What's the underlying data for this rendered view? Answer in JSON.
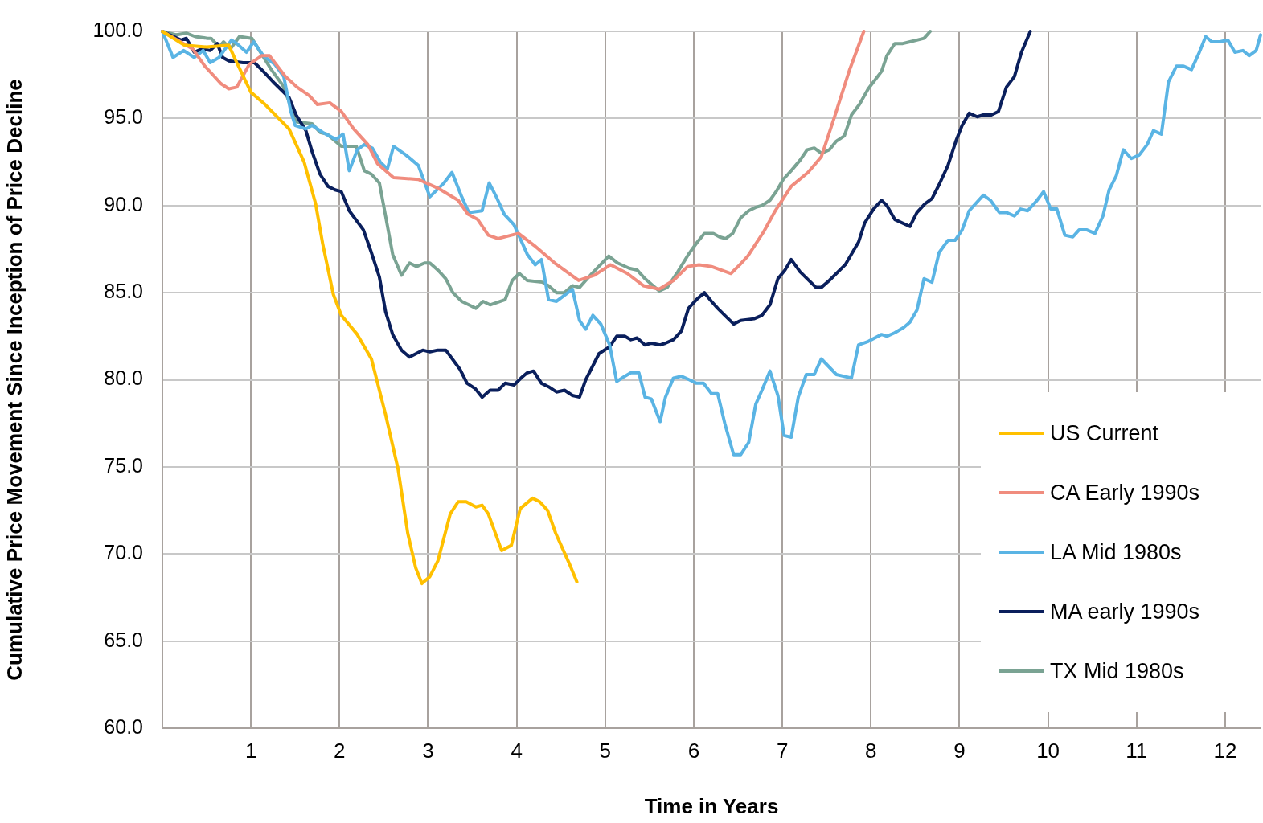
{
  "chart_data": {
    "type": "line",
    "xlabel": "Time in Years",
    "ylabel": "Cumulative Price Movement Since Inception of Price Decline",
    "xlim": [
      0,
      12.4
    ],
    "xticks": [
      1,
      2,
      3,
      4,
      5,
      6,
      7,
      8,
      9,
      10,
      11,
      12
    ],
    "ylim": [
      60,
      100
    ],
    "yticks": [
      {
        "value": 60,
        "label": "60.0"
      },
      {
        "value": 65,
        "label": "65.0"
      },
      {
        "value": 70,
        "label": "70.0"
      },
      {
        "value": 75,
        "label": "75.0"
      },
      {
        "value": 80,
        "label": "80.0"
      },
      {
        "value": 85,
        "label": "85.0"
      },
      {
        "value": 90,
        "label": "90.0"
      },
      {
        "value": 95,
        "label": "95.0"
      },
      {
        "value": 100,
        "label": "100.0"
      }
    ],
    "grid": true,
    "legend": "bottom right",
    "marker": "none",
    "line_style": "solid",
    "series": [
      {
        "name": "US Current",
        "color": "#ffc000",
        "x": [
          0,
          0.25,
          0.5,
          0.75,
          0.84,
          1.0,
          1.16,
          1.43,
          1.6,
          1.73,
          1.81,
          1.93,
          2.02,
          2.2,
          2.36,
          2.52,
          2.66,
          2.77,
          2.86,
          2.93,
          3.02,
          3.11,
          3.25,
          3.34,
          3.43,
          3.54,
          3.61,
          3.68,
          3.83,
          3.94,
          4.04,
          4.18,
          4.26,
          4.35,
          4.44,
          4.59,
          4.68
        ],
        "values": [
          100,
          99.2,
          99.1,
          99.2,
          98.2,
          96.5,
          95.8,
          94.4,
          92.5,
          90.1,
          87.8,
          84.9,
          83.7,
          82.6,
          81.2,
          78.0,
          74.9,
          71.2,
          69.2,
          68.3,
          68.7,
          69.6,
          72.3,
          73.0,
          73.0,
          72.7,
          72.8,
          72.3,
          70.2,
          70.5,
          72.6,
          73.2,
          73.0,
          72.5,
          71.2,
          69.5,
          68.4
        ]
      },
      {
        "name": "CA Early 1990s",
        "color": "#f08c7e",
        "x": [
          0,
          0.34,
          0.48,
          0.66,
          0.75,
          0.84,
          0.98,
          1.12,
          1.21,
          1.39,
          1.52,
          1.66,
          1.75,
          1.89,
          2.02,
          2.16,
          2.32,
          2.43,
          2.61,
          2.89,
          3.11,
          3.34,
          3.45,
          3.56,
          3.68,
          3.79,
          4.02,
          4.2,
          4.43,
          4.7,
          4.88,
          5.06,
          5.25,
          5.43,
          5.61,
          5.77,
          5.93,
          6.06,
          6.2,
          6.42,
          6.52,
          6.61,
          6.79,
          6.92,
          7.1,
          7.29,
          7.44,
          7.59,
          7.76,
          7.92
        ],
        "values": [
          100,
          99.0,
          98.0,
          97.0,
          96.7,
          96.8,
          98.1,
          98.6,
          98.6,
          97.4,
          96.8,
          96.3,
          95.8,
          95.9,
          95.4,
          94.4,
          93.5,
          92.4,
          91.6,
          91.5,
          91.0,
          90.3,
          89.5,
          89.2,
          88.3,
          88.1,
          88.4,
          87.7,
          86.7,
          85.7,
          86.0,
          86.6,
          86.1,
          85.4,
          85.2,
          85.7,
          86.5,
          86.6,
          86.5,
          86.1,
          86.6,
          87.1,
          88.5,
          89.7,
          91.1,
          91.9,
          92.8,
          95.1,
          97.8,
          100
        ]
      },
      {
        "name": "LA Mid 1980s",
        "color": "#5ab4e4",
        "x": [
          0,
          0.12,
          0.24,
          0.36,
          0.46,
          0.54,
          0.64,
          0.78,
          0.84,
          0.95,
          1.03,
          1.14,
          1.27,
          1.37,
          1.45,
          1.5,
          1.62,
          1.69,
          1.81,
          1.96,
          2.04,
          2.11,
          2.2,
          2.28,
          2.37,
          2.46,
          2.54,
          2.61,
          2.75,
          2.89,
          3.02,
          3.18,
          3.27,
          3.38,
          3.46,
          3.61,
          3.69,
          3.77,
          3.86,
          3.97,
          4.12,
          4.21,
          4.28,
          4.36,
          4.45,
          4.63,
          4.71,
          4.78,
          4.86,
          4.95,
          5.05,
          5.13,
          5.22,
          5.29,
          5.38,
          5.45,
          5.52,
          5.62,
          5.68,
          5.77,
          5.86,
          5.95,
          6.03,
          6.11,
          6.2,
          6.27,
          6.35,
          6.45,
          6.53,
          6.62,
          6.7,
          6.77,
          6.86,
          6.95,
          7.02,
          7.1,
          7.18,
          7.27,
          7.36,
          7.44,
          7.61,
          7.78,
          7.86,
          7.97,
          8.12,
          8.18,
          8.27,
          8.37,
          8.44,
          8.52,
          8.6,
          8.69,
          8.77,
          8.87,
          8.95,
          9.03,
          9.11,
          9.27,
          9.35,
          9.45,
          9.53,
          9.62,
          9.69,
          9.77,
          9.86,
          9.95,
          10.03,
          10.1,
          10.19,
          10.28,
          10.35,
          10.44,
          10.53,
          10.62,
          10.69,
          10.77,
          10.85,
          10.94,
          11.03,
          11.12,
          11.19,
          11.28,
          11.36,
          11.45,
          11.53,
          11.62,
          11.7,
          11.78,
          11.85,
          11.94,
          12.03,
          12.11,
          12.2,
          12.27,
          12.35,
          12.4
        ],
        "values": [
          100,
          98.5,
          98.9,
          98.5,
          98.9,
          98.2,
          98.5,
          99.5,
          99.3,
          98.8,
          99.4,
          98.6,
          98.1,
          97.4,
          95.4,
          94.6,
          94.4,
          94.6,
          94.2,
          93.8,
          94.1,
          92.0,
          93.2,
          93.5,
          93.3,
          92.5,
          92.1,
          93.4,
          92.9,
          92.3,
          90.5,
          91.3,
          91.9,
          90.5,
          89.6,
          89.7,
          91.3,
          90.5,
          89.5,
          88.9,
          87.2,
          86.6,
          86.9,
          84.6,
          84.5,
          85.2,
          83.4,
          82.9,
          83.7,
          83.2,
          82.0,
          79.9,
          80.2,
          80.4,
          80.4,
          79.0,
          78.9,
          77.6,
          79.0,
          80.1,
          80.2,
          80.0,
          79.8,
          79.8,
          79.2,
          79.2,
          77.5,
          75.7,
          75.7,
          76.4,
          78.6,
          79.4,
          80.5,
          79.1,
          76.8,
          76.7,
          79.0,
          80.3,
          80.3,
          81.2,
          80.3,
          80.1,
          82.0,
          82.2,
          82.6,
          82.5,
          82.7,
          83.0,
          83.3,
          84.0,
          85.8,
          85.6,
          87.3,
          88.0,
          88.0,
          88.6,
          89.7,
          90.6,
          90.3,
          89.6,
          89.6,
          89.4,
          89.8,
          89.7,
          90.2,
          90.8,
          89.8,
          89.8,
          88.3,
          88.2,
          88.6,
          88.6,
          88.4,
          89.4,
          90.9,
          91.7,
          93.2,
          92.7,
          92.9,
          93.5,
          94.3,
          94.1,
          97.1,
          98.0,
          98.0,
          97.8,
          98.7,
          99.7,
          99.4,
          99.4,
          99.5,
          98.8,
          98.9,
          98.6,
          98.9,
          99.8
        ]
      },
      {
        "name": "MA early 1990s",
        "color": "#0a1f5c",
        "x": [
          0,
          0.21,
          0.27,
          0.36,
          0.45,
          0.54,
          0.62,
          0.68,
          0.75,
          0.91,
          1.04,
          1.14,
          1.27,
          1.43,
          1.51,
          1.62,
          1.69,
          1.78,
          1.87,
          1.95,
          2.02,
          2.11,
          2.27,
          2.36,
          2.45,
          2.52,
          2.6,
          2.7,
          2.79,
          2.94,
          3.02,
          3.11,
          3.2,
          3.36,
          3.44,
          3.53,
          3.61,
          3.7,
          3.79,
          3.87,
          3.97,
          4.05,
          4.12,
          4.19,
          4.28,
          4.36,
          4.45,
          4.54,
          4.63,
          4.71,
          4.78,
          4.93,
          5.05,
          5.13,
          5.22,
          5.29,
          5.36,
          5.45,
          5.52,
          5.62,
          5.68,
          5.77,
          5.86,
          5.94,
          6.03,
          6.12,
          6.2,
          6.27,
          6.35,
          6.45,
          6.53,
          6.68,
          6.77,
          6.86,
          6.95,
          7.03,
          7.1,
          7.2,
          7.38,
          7.44,
          7.53,
          7.71,
          7.86,
          7.93,
          8.03,
          8.12,
          8.18,
          8.27,
          8.44,
          8.52,
          8.61,
          8.69,
          8.77,
          8.87,
          8.96,
          9.03,
          9.11,
          9.2,
          9.27,
          9.36,
          9.44,
          9.53,
          9.62,
          9.7,
          9.8
        ],
        "values": [
          100,
          99.5,
          99.6,
          98.8,
          99.0,
          98.9,
          99.3,
          98.5,
          98.3,
          98.2,
          98.2,
          97.7,
          97.0,
          96.2,
          95.2,
          94.3,
          93.1,
          91.8,
          91.1,
          90.9,
          90.8,
          89.7,
          88.6,
          87.3,
          85.9,
          83.9,
          82.6,
          81.7,
          81.3,
          81.7,
          81.6,
          81.7,
          81.7,
          80.6,
          79.8,
          79.5,
          79.0,
          79.4,
          79.4,
          79.8,
          79.7,
          80.1,
          80.4,
          80.5,
          79.8,
          79.6,
          79.3,
          79.4,
          79.1,
          79.0,
          80.0,
          81.5,
          81.9,
          82.5,
          82.5,
          82.3,
          82.4,
          82.0,
          82.1,
          82.0,
          82.1,
          82.3,
          82.8,
          84.1,
          84.6,
          85.0,
          84.5,
          84.1,
          83.7,
          83.2,
          83.4,
          83.5,
          83.7,
          84.3,
          85.8,
          86.3,
          86.9,
          86.2,
          85.3,
          85.3,
          85.7,
          86.6,
          87.9,
          89.0,
          89.8,
          90.3,
          90.0,
          89.2,
          88.8,
          89.6,
          90.1,
          90.4,
          91.2,
          92.3,
          93.7,
          94.6,
          95.3,
          95.1,
          95.2,
          95.2,
          95.4,
          96.8,
          97.4,
          98.8,
          100
        ]
      },
      {
        "name": "TX Mid 1980s",
        "color": "#7aa393",
        "x": [
          0,
          0.16,
          0.27,
          0.37,
          0.51,
          0.55,
          0.64,
          0.69,
          0.77,
          0.87,
          1.01,
          1.12,
          1.23,
          1.36,
          1.45,
          1.52,
          1.69,
          1.78,
          1.86,
          2.02,
          2.19,
          2.28,
          2.36,
          2.45,
          2.52,
          2.6,
          2.7,
          2.79,
          2.87,
          2.96,
          3.02,
          3.11,
          3.2,
          3.28,
          3.38,
          3.46,
          3.54,
          3.62,
          3.7,
          3.87,
          3.95,
          4.03,
          4.12,
          4.29,
          4.36,
          4.45,
          4.54,
          4.63,
          4.71,
          4.85,
          5.04,
          5.14,
          5.27,
          5.36,
          5.45,
          5.54,
          5.61,
          5.7,
          5.82,
          5.94,
          6.04,
          6.12,
          6.22,
          6.29,
          6.36,
          6.44,
          6.53,
          6.62,
          6.7,
          6.77,
          6.86,
          6.93,
          7.01,
          7.1,
          7.2,
          7.28,
          7.36,
          7.44,
          7.53,
          7.61,
          7.7,
          7.78,
          7.87,
          7.97,
          8.12,
          8.18,
          8.27,
          8.36,
          8.44,
          8.52,
          8.6,
          8.67
        ],
        "values": [
          100,
          99.8,
          99.9,
          99.7,
          99.6,
          99.6,
          99.1,
          99.4,
          99.0,
          99.7,
          99.6,
          98.7,
          97.8,
          96.9,
          95.7,
          94.8,
          94.7,
          94.2,
          94.1,
          93.4,
          93.4,
          92.0,
          91.8,
          91.3,
          89.4,
          87.2,
          86.0,
          86.7,
          86.5,
          86.7,
          86.7,
          86.3,
          85.8,
          85.0,
          84.5,
          84.3,
          84.1,
          84.5,
          84.3,
          84.6,
          85.7,
          86.1,
          85.7,
          85.6,
          85.4,
          85.0,
          85.0,
          85.4,
          85.3,
          86.1,
          87.1,
          86.7,
          86.4,
          86.3,
          85.8,
          85.4,
          85.1,
          85.3,
          86.2,
          87.2,
          87.9,
          88.4,
          88.4,
          88.2,
          88.1,
          88.4,
          89.3,
          89.7,
          89.9,
          90.0,
          90.3,
          90.8,
          91.5,
          92.0,
          92.6,
          93.2,
          93.3,
          93.0,
          93.2,
          93.7,
          94.0,
          95.2,
          95.8,
          96.7,
          97.7,
          98.6,
          99.3,
          99.3,
          99.4,
          99.5,
          99.6,
          100
        ]
      }
    ]
  }
}
